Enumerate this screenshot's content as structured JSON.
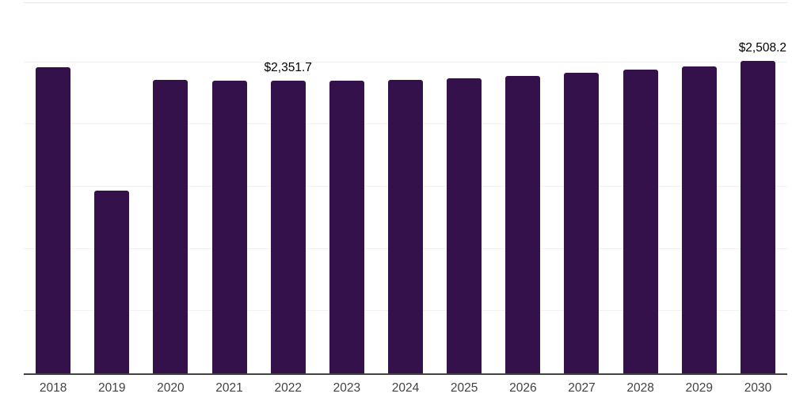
{
  "chart_data": {
    "type": "bar",
    "title": "",
    "xlabel": "",
    "ylabel": "",
    "categories": [
      "2018",
      "2019",
      "2020",
      "2021",
      "2022",
      "2023",
      "2024",
      "2025",
      "2026",
      "2027",
      "2028",
      "2029",
      "2030"
    ],
    "values": [
      2460,
      1470,
      2358,
      2349,
      2351.7,
      2352,
      2361,
      2369,
      2392,
      2415,
      2439,
      2464,
      2508.2
    ],
    "data_labels": {
      "2022": "$2,351.7",
      "2030": "$2,508.2"
    },
    "ylim": [
      0,
      3000
    ],
    "gridline_step": 500,
    "grid": true,
    "y_axis_tick_labels_visible": false,
    "legend": "none",
    "colors": {
      "bar": "#34114b",
      "axis_line": "#424242",
      "gridline": "#f2f2f2",
      "plot_top_border": "#e9e9e9",
      "x_tick_label": "#424242",
      "data_label": "#000000",
      "background": "#ffffff"
    }
  }
}
